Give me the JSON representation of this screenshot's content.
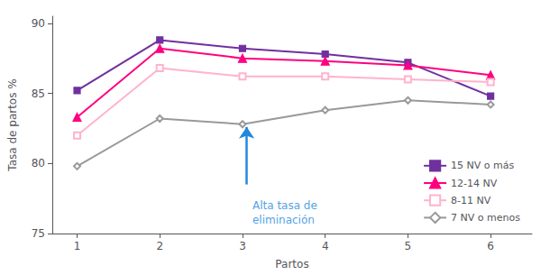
{
  "chart_data": {
    "type": "line",
    "xlabel": "Partos",
    "ylabel": "Tasa de partos %",
    "x": [
      1,
      2,
      3,
      4,
      5,
      6
    ],
    "series": [
      {
        "name": "15 NV o más",
        "color": "#7030A0",
        "marker": "square",
        "values": [
          85.2,
          88.8,
          88.2,
          87.8,
          87.2,
          84.8
        ]
      },
      {
        "name": "12-14 NV",
        "color": "#FF0080",
        "marker": "triangle",
        "values": [
          83.3,
          88.2,
          87.5,
          87.3,
          87.0,
          86.3
        ]
      },
      {
        "name": "8-11 NV",
        "color": "#FFB3CC",
        "marker": "open-square",
        "values": [
          82.0,
          86.8,
          86.2,
          86.2,
          86.0,
          85.8
        ]
      },
      {
        "name": "7 NV o menos",
        "color": "#999999",
        "marker": "open-diamond",
        "values": [
          79.8,
          83.2,
          82.8,
          83.8,
          84.5,
          84.2
        ]
      }
    ],
    "xlim": [
      0.7,
      6.5
    ],
    "xticks": [
      1,
      2,
      3,
      4,
      5,
      6
    ],
    "ylim": [
      75,
      90.5
    ],
    "yticks": [
      75,
      80,
      85,
      90
    ],
    "grid": false,
    "legend": "lower right",
    "annotations": [
      {
        "text": "Alta tasa de\neliminación",
        "x": 3.12,
        "y": 77.5,
        "color": "#2288DD",
        "arrow": {
          "x": 3.05,
          "y_tail": 78.5,
          "y_tip": 82.6
        }
      }
    ]
  }
}
